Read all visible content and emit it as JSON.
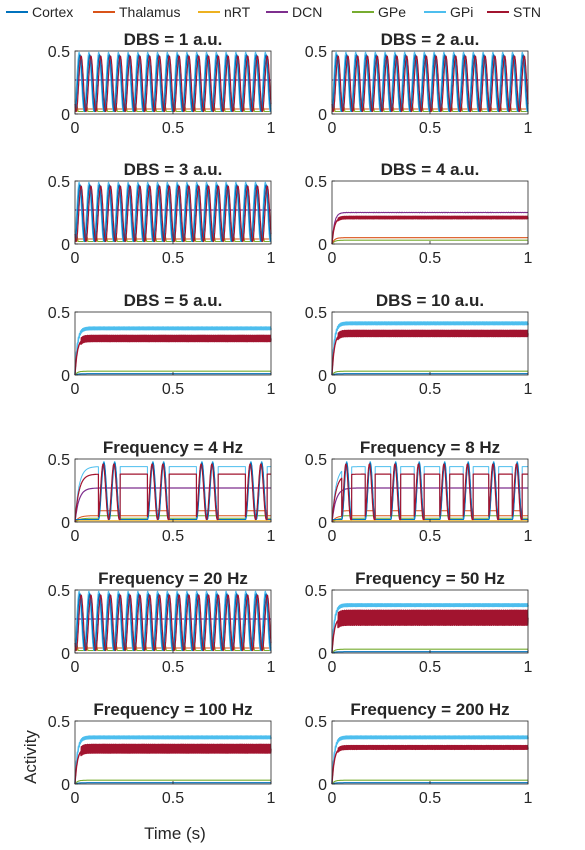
{
  "legend": [
    {
      "name": "Cortex",
      "color": "#0072BD"
    },
    {
      "name": "Thalamus",
      "color": "#D95319"
    },
    {
      "name": "nRT",
      "color": "#EDB120"
    },
    {
      "name": "DCN",
      "color": "#7E2F8E"
    },
    {
      "name": "GPe",
      "color": "#77AC30"
    },
    {
      "name": "GPi",
      "color": "#4DBEEE"
    },
    {
      "name": "STN",
      "color": "#A2142F"
    }
  ],
  "axes": {
    "xlabel": "Time (s)",
    "ylabel": "Activity"
  },
  "chart_data": [
    {
      "type": "line",
      "title": "DBS = 1 a.u.",
      "regime": "osc",
      "osc_cycles": 20,
      "xlim": [
        0,
        1
      ],
      "ylim": [
        0,
        0.5
      ],
      "xticks": [
        "0",
        "0.5",
        "1"
      ],
      "yticks": [
        "0",
        "0.5"
      ]
    },
    {
      "type": "line",
      "title": "DBS = 2 a.u.",
      "regime": "osc",
      "osc_cycles": 20,
      "xlim": [
        0,
        1
      ],
      "ylim": [
        0,
        0.5
      ],
      "xticks": [
        "0",
        "0.5",
        "1"
      ],
      "yticks": [
        "0",
        "0.5"
      ]
    },
    {
      "type": "line",
      "title": "DBS = 3 a.u.",
      "regime": "osc",
      "osc_cycles": 20,
      "xlim": [
        0,
        1
      ],
      "ylim": [
        0,
        0.5
      ],
      "xticks": [
        "0",
        "0.5",
        "1"
      ],
      "yticks": [
        "0",
        "0.5"
      ]
    },
    {
      "type": "line",
      "title": "DBS = 4 a.u.",
      "regime": "steady",
      "steady": {
        "STN": 0.21,
        "DCN": 0.25,
        "Thalamus": 0.05,
        "GPe": 0.03
      },
      "band": 0.02,
      "xlim": [
        0,
        1
      ],
      "ylim": [
        0,
        0.5
      ],
      "xticks": [
        "0",
        "0.5",
        "1"
      ],
      "yticks": [
        "0",
        "0.5"
      ]
    },
    {
      "type": "line",
      "title": "DBS = 5 a.u.",
      "regime": "steady",
      "steady": {
        "GPi": 0.37,
        "STN": 0.29,
        "GPe": 0.03,
        "Cortex": 0.01
      },
      "band": 0.05,
      "xlim": [
        0,
        1
      ],
      "ylim": [
        0,
        0.5
      ],
      "xticks": [
        "0",
        "0.5",
        "1"
      ],
      "yticks": [
        "0",
        "0.5"
      ]
    },
    {
      "type": "line",
      "title": "DBS = 10 a.u.",
      "regime": "steady",
      "steady": {
        "GPi": 0.41,
        "STN": 0.33,
        "GPe": 0.03,
        "Cortex": 0.01
      },
      "band": 0.05,
      "xlim": [
        0,
        1
      ],
      "ylim": [
        0,
        0.5
      ],
      "xticks": [
        "0",
        "0.5",
        "1"
      ],
      "yticks": [
        "0",
        "0.5"
      ]
    },
    {
      "type": "line",
      "title": "Frequency = 4 Hz",
      "regime": "burst",
      "bursts": [
        [
          0.12,
          0.23
        ],
        [
          0.37,
          0.48
        ],
        [
          0.62,
          0.73
        ],
        [
          0.87,
          0.98
        ]
      ],
      "burst_cycles": 2,
      "xlim": [
        0,
        1
      ],
      "ylim": [
        0,
        0.5
      ],
      "xticks": [
        "0",
        "0.5",
        "1"
      ],
      "yticks": [
        "0",
        "0.5"
      ]
    },
    {
      "type": "line",
      "title": "Frequency = 8 Hz",
      "regime": "burst",
      "bursts": [
        [
          0.05,
          0.1
        ],
        [
          0.17,
          0.22
        ],
        [
          0.3,
          0.35
        ],
        [
          0.42,
          0.47
        ],
        [
          0.55,
          0.6
        ],
        [
          0.67,
          0.72
        ],
        [
          0.8,
          0.85
        ],
        [
          0.92,
          0.97
        ]
      ],
      "burst_cycles": 1,
      "xlim": [
        0,
        1
      ],
      "ylim": [
        0,
        0.5
      ],
      "xticks": [
        "0",
        "0.5",
        "1"
      ],
      "yticks": [
        "0",
        "0.5"
      ]
    },
    {
      "type": "line",
      "title": "Frequency = 20 Hz",
      "regime": "osc",
      "osc_cycles": 20,
      "xlim": [
        0,
        1
      ],
      "ylim": [
        0,
        0.5
      ],
      "xticks": [
        "0",
        "0.5",
        "1"
      ],
      "yticks": [
        "0",
        "0.5"
      ]
    },
    {
      "type": "line",
      "title": "Frequency = 50 Hz",
      "regime": "steady",
      "steady": {
        "GPi": 0.38,
        "STN": 0.28,
        "GPe": 0.03,
        "Cortex": 0.01
      },
      "band": 0.12,
      "xlim": [
        0,
        1
      ],
      "ylim": [
        0,
        0.5
      ],
      "xticks": [
        "0",
        "0.5",
        "1"
      ],
      "yticks": [
        "0",
        "0.5"
      ]
    },
    {
      "type": "line",
      "title": "Frequency = 100 Hz",
      "regime": "steady",
      "steady": {
        "GPi": 0.37,
        "STN": 0.28,
        "GPe": 0.03,
        "Cortex": 0.01
      },
      "band": 0.07,
      "xlim": [
        0,
        1
      ],
      "ylim": [
        0,
        0.5
      ],
      "xticks": [
        "0",
        "0.5",
        "1"
      ],
      "yticks": [
        "0",
        "0.5"
      ]
    },
    {
      "type": "line",
      "title": "Frequency = 200 Hz",
      "regime": "steady",
      "steady": {
        "GPi": 0.37,
        "STN": 0.29,
        "GPe": 0.03,
        "Cortex": 0.01
      },
      "band": 0.03,
      "xlim": [
        0,
        1
      ],
      "ylim": [
        0,
        0.5
      ],
      "xticks": [
        "0",
        "0.5",
        "1"
      ],
      "yticks": [
        "0",
        "0.5"
      ]
    }
  ]
}
